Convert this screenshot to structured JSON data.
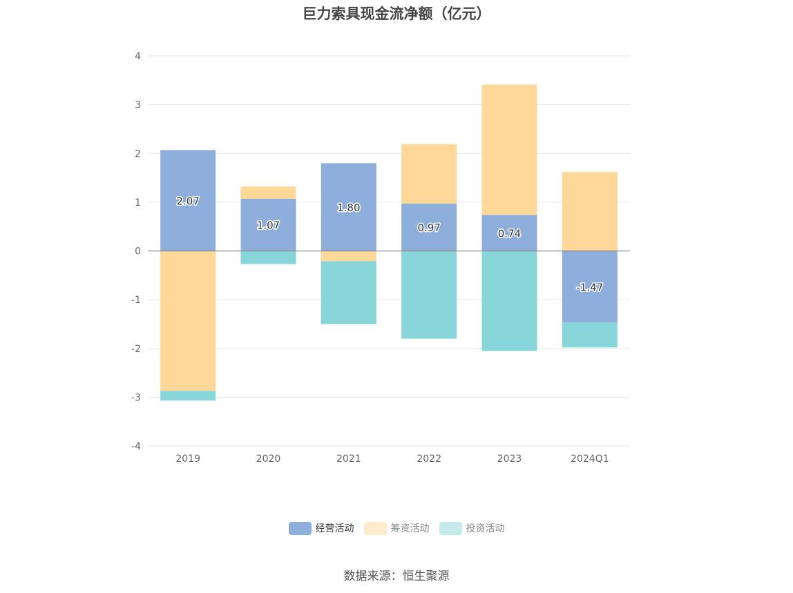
{
  "title": "巨力索具现金流净额（亿元）",
  "source": "数据来源：恒生聚源",
  "chart_data": {
    "type": "bar",
    "stacked": true,
    "title": "巨力索具现金流净额（亿元）",
    "categories": [
      "2019",
      "2020",
      "2021",
      "2022",
      "2023",
      "2024Q1"
    ],
    "ylim": [
      -4,
      4
    ],
    "yticks": [
      4,
      3,
      2,
      1,
      0,
      -1,
      -2,
      -3,
      -4
    ],
    "grid": true,
    "legend_position": "bottom",
    "series": [
      {
        "name": "经营活动",
        "color": "#8eaedb",
        "values": [
          2.07,
          1.07,
          1.8,
          0.97,
          0.74,
          -1.47
        ],
        "show_labels": true
      },
      {
        "name": "筹资活动",
        "color": "#fed899",
        "values": [
          -2.87,
          0.25,
          -0.21,
          1.22,
          2.67,
          1.62
        ],
        "show_labels": false
      },
      {
        "name": "投资活动",
        "color": "#88d6da",
        "values": [
          -0.2,
          -0.27,
          -1.29,
          -1.8,
          -2.05,
          -0.51
        ],
        "show_labels": false
      }
    ],
    "data_labels": [
      "2.07",
      "1.07",
      "1.80",
      "0.97",
      "0.74",
      "-1.47"
    ]
  },
  "legend": [
    {
      "label": "经营活动",
      "color": "#8eaedb",
      "text_color": "#333333"
    },
    {
      "label": "筹资活动",
      "color": "#feebcc",
      "text_color": "#888888"
    },
    {
      "label": "投资活动",
      "color": "#c4eaec",
      "text_color": "#888888"
    }
  ]
}
